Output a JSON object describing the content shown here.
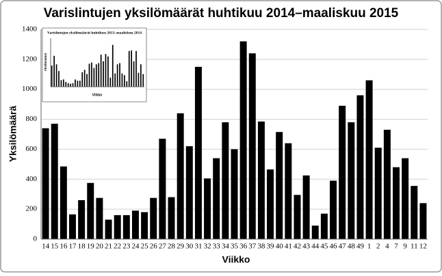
{
  "chart_data": [
    {
      "type": "bar",
      "title": "Varislintujen yksilömäärät huhtikuu 2014–maaliskuu 2015",
      "x_label": "Viikko",
      "y_label": "Yksilömäärä",
      "categories": [
        "14",
        "15",
        "16",
        "17",
        "18",
        "19",
        "20",
        "21",
        "22",
        "23",
        "24",
        "25",
        "26",
        "27",
        "28",
        "29",
        "30",
        "31",
        "32",
        "33",
        "34",
        "35",
        "36",
        "37",
        "38",
        "39",
        "40",
        "41",
        "42",
        "43",
        "44",
        "45",
        "46",
        "47",
        "48",
        "49",
        "1",
        "2",
        "4",
        "7",
        "9",
        "11",
        "12"
      ],
      "values": [
        740,
        770,
        485,
        165,
        260,
        375,
        275,
        130,
        160,
        160,
        190,
        180,
        275,
        670,
        280,
        840,
        620,
        1150,
        405,
        540,
        780,
        600,
        1320,
        1240,
        785,
        465,
        715,
        640,
        295,
        425,
        90,
        170,
        390,
        890,
        780,
        960,
        1060,
        610,
        730,
        480,
        540,
        355,
        240
      ],
      "color": "#000000",
      "ylim": [
        0,
        1400
      ],
      "yticks": [
        0,
        200,
        400,
        600,
        800,
        1000,
        1200,
        1400
      ],
      "grid": true
    },
    {
      "type": "bar",
      "title": "Varislintujen yksilömäärät huhtikuu 2013–maaliskuu 2014",
      "x_label": "Viikko",
      "y_label": "Yksilömäärä",
      "values": [
        35,
        51,
        37,
        26,
        11,
        12,
        8,
        6,
        5,
        6,
        12,
        10,
        10,
        24,
        28,
        21,
        38,
        40,
        31,
        37,
        39,
        53,
        42,
        54,
        50,
        15,
        69,
        22,
        37,
        39,
        22,
        19,
        9,
        59,
        60,
        42,
        59,
        23,
        37,
        21
      ],
      "color": "#000000",
      "ylim": [
        0,
        80
      ]
    }
  ]
}
